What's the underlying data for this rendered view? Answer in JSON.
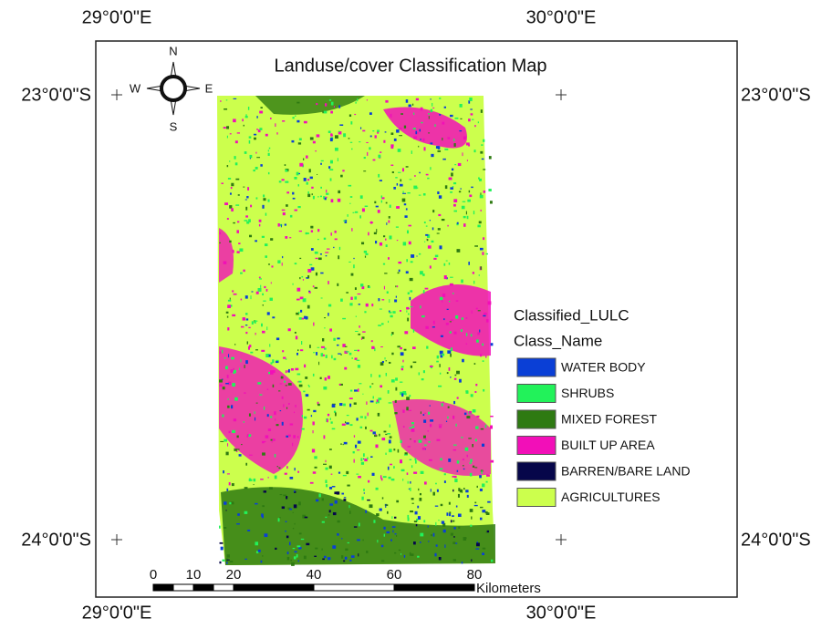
{
  "title": "Landuse/cover Classification Map",
  "graticule": {
    "top": [
      "29°0'0\"E",
      "30°0'0\"E"
    ],
    "bottom": [
      "29°0'0\"E",
      "30°0'0\"E"
    ],
    "left": [
      "23°0'0\"S",
      "24°0'0\"S"
    ],
    "right": [
      "23°0'0\"S",
      "24°0'0\"S"
    ]
  },
  "compass": {
    "n": "N",
    "s": "S",
    "e": "E",
    "w": "W"
  },
  "legend": {
    "title": "Classified_LULC",
    "subtitle": "Class_Name",
    "classes": [
      {
        "name": "WATER BODY",
        "color": "#0a3fd6"
      },
      {
        "name": "SHRUBS",
        "color": "#22f25a"
      },
      {
        "name": "MIXED FOREST",
        "color": "#2e7a12"
      },
      {
        "name": "BUILT UP AREA",
        "color": "#f20fb8"
      },
      {
        "name": "BARREN/BARE LAND",
        "color": "#06064a"
      },
      {
        "name": "AGRICULTURES",
        "color": "#ccff4d"
      }
    ]
  },
  "scale_bar": {
    "ticks": [
      0,
      10,
      20,
      40,
      60,
      80
    ],
    "unit": "Kilometers"
  }
}
